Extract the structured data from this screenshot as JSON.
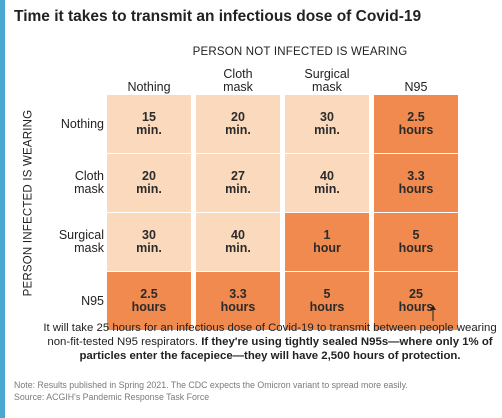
{
  "chart_data": {
    "type": "table",
    "title": "Time it takes to transmit an infectious dose of Covid-19",
    "column_axis_label": "PERSON NOT INFECTED IS WEARING",
    "row_axis_label": "PERSON INFECTED IS WEARING",
    "columns": [
      {
        "line1": "",
        "line2": "Nothing"
      },
      {
        "line1": "Cloth",
        "line2": "mask"
      },
      {
        "line1": "Surgical",
        "line2": "mask"
      },
      {
        "line1": "",
        "line2": "N95"
      }
    ],
    "rows": [
      {
        "label_line1": "Nothing",
        "label_line2": "",
        "cells": [
          {
            "value": "15",
            "unit": "min.",
            "level": "light"
          },
          {
            "value": "20",
            "unit": "min.",
            "level": "light"
          },
          {
            "value": "30",
            "unit": "min.",
            "level": "light"
          },
          {
            "value": "2.5",
            "unit": "hours",
            "level": "dark"
          }
        ]
      },
      {
        "label_line1": "Cloth",
        "label_line2": "mask",
        "cells": [
          {
            "value": "20",
            "unit": "min.",
            "level": "light"
          },
          {
            "value": "27",
            "unit": "min.",
            "level": "light"
          },
          {
            "value": "40",
            "unit": "min.",
            "level": "light"
          },
          {
            "value": "3.3",
            "unit": "hours",
            "level": "dark"
          }
        ]
      },
      {
        "label_line1": "Surgical",
        "label_line2": "mask",
        "cells": [
          {
            "value": "30",
            "unit": "min.",
            "level": "light"
          },
          {
            "value": "40",
            "unit": "min.",
            "level": "light"
          },
          {
            "value": "1",
            "unit": "hour",
            "level": "dark"
          },
          {
            "value": "5",
            "unit": "hours",
            "level": "dark"
          }
        ]
      },
      {
        "label_line1": "N95",
        "label_line2": "",
        "cells": [
          {
            "value": "2.5",
            "unit": "hours",
            "level": "dark"
          },
          {
            "value": "3.3",
            "unit": "hours",
            "level": "dark"
          },
          {
            "value": "5",
            "unit": "hours",
            "level": "dark"
          },
          {
            "value": "25",
            "unit": "hours",
            "level": "dark"
          }
        ]
      }
    ],
    "annotation": {
      "line1": "It will take 25 hours for an infectious dose of Covid-19 to transmit between people wearing",
      "line2_plain": "non-fit-tested N95 respirators.",
      "line2_bold": "If they're using tightly sealed N95s—where only 1% of",
      "line3_bold": "particles enter the facepiece—they will have 2,500 hours of protection."
    },
    "note": "Note: Results published in Spring 2021. The CDC expects the Omicron variant to spread more easily.",
    "source": "Source: ACGIH's Pandemic Response Task Force",
    "colors": {
      "light_cell": "#fbd9bc",
      "dark_cell": "#f08a4e",
      "accent": "#49a8cf"
    }
  }
}
